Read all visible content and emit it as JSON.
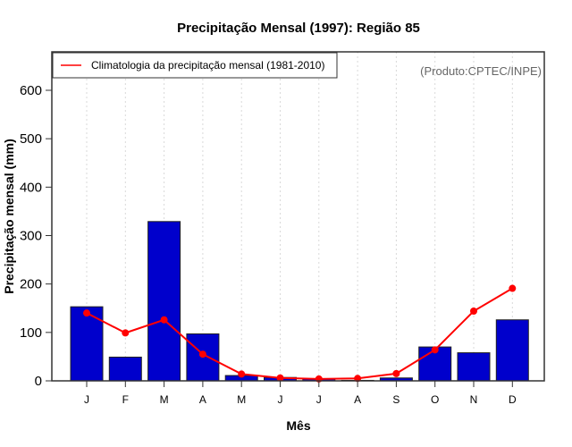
{
  "chart_data": {
    "type": "bar",
    "title": "Precipitação Mensal (1997): Região 85",
    "xlabel": "Mês",
    "ylabel": "Precipitação mensal (mm)",
    "ylim": [
      0,
      600
    ],
    "yticks": [
      0,
      100,
      200,
      300,
      400,
      500,
      600
    ],
    "categories": [
      "J",
      "F",
      "M",
      "A",
      "M",
      "J",
      "J",
      "A",
      "S",
      "O",
      "N",
      "D"
    ],
    "grid": "vertical dotted",
    "series": [
      {
        "name": "Precipitação mensal (1997)",
        "type": "bar",
        "color": "#0000cc",
        "values": [
          153,
          49,
          329,
          97,
          11,
          7,
          4,
          1,
          6,
          70,
          58,
          126
        ]
      },
      {
        "name": "Climatologia da precipitação mensal (1981-2010)",
        "type": "line",
        "color": "#ff0000",
        "values": [
          140,
          99,
          126,
          55,
          14,
          6,
          4,
          5,
          15,
          64,
          144,
          191
        ]
      }
    ],
    "legend": {
      "placement": "top-left",
      "entries": [
        "Climatologia da precipitação mensal (1981-2010)"
      ]
    },
    "annotation": "(Produto:CPTEC/INPE)"
  }
}
